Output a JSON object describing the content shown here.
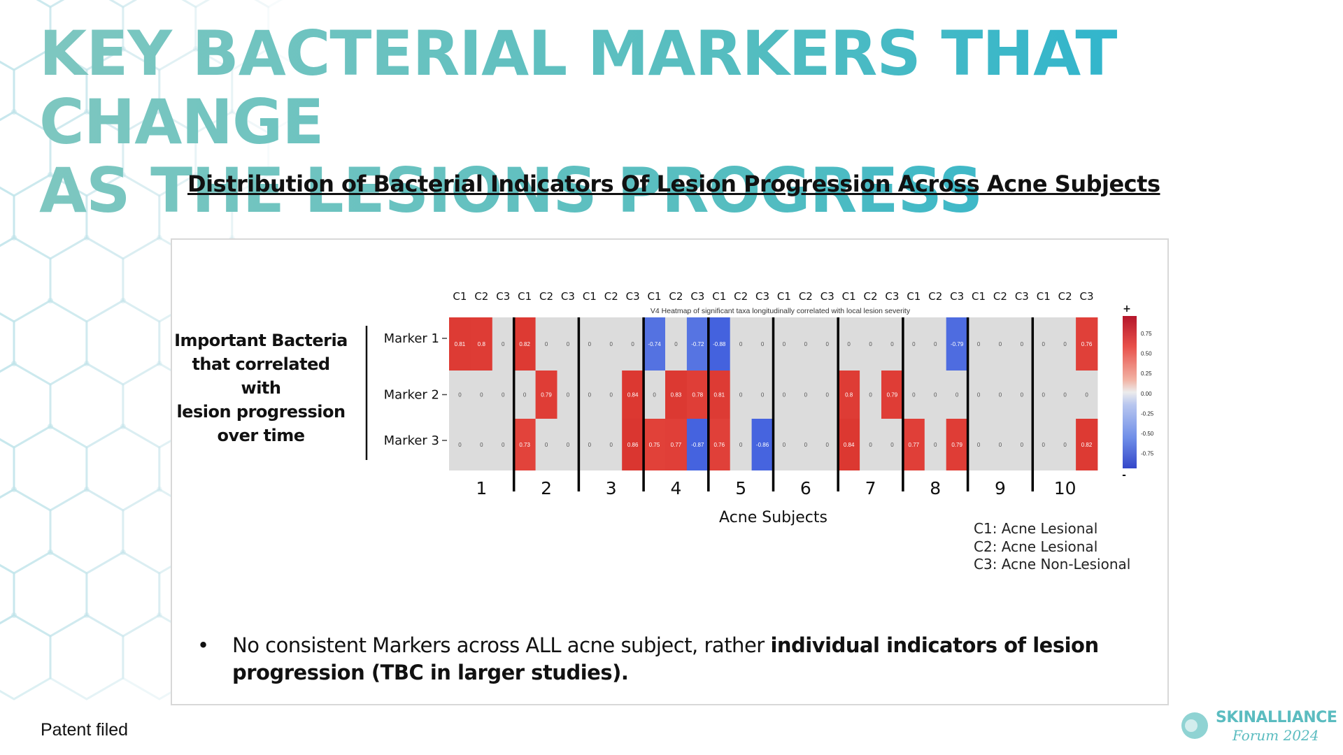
{
  "title_line1": "KEY BACTERIAL MARKERS THAT CHANGE",
  "title_line2": "AS THE LESIONS PROGRESS",
  "subtitle": "Distribution of Bacterial Indicators Of Lesion Progression Across Acne Subjects",
  "side_label": [
    "Important Bacteria",
    "that correlated with",
    "lesion progression",
    "over time"
  ],
  "legend_lines": [
    "C1: Acne Lesional",
    "C2: Acne Lesional",
    "C3: Acne Non-Lesional"
  ],
  "bullet": {
    "marker": "•",
    "normal": "No consistent Markers across ALL acne subject, rather ",
    "bold": "individual indicators of lesion progression (TBC in larger studies)."
  },
  "footer_note": "Patent filed",
  "logo": {
    "name": "SKINALLIANCE",
    "sub": "Forum 2024"
  },
  "colors": {
    "title_start": "#7ec7c0",
    "title_end": "#1eb1d3",
    "accent": "#5bbcc0"
  },
  "chart_data": {
    "type": "heatmap",
    "title": "V4 Heatmap of significant taxa longitudinally correlated with local lesion severity",
    "xlabel": "Acne Subjects",
    "subjects": [
      "1",
      "2",
      "3",
      "4",
      "5",
      "6",
      "7",
      "8",
      "9",
      "10"
    ],
    "sample_labels": [
      "C1",
      "C2",
      "C3"
    ],
    "markers": [
      "Marker 1",
      "Marker 2",
      "Marker 3"
    ],
    "values": [
      [
        0.81,
        0.8,
        0,
        0.82,
        0,
        0,
        0,
        0,
        0,
        -0.74,
        0,
        -0.72,
        -0.88,
        0,
        0,
        0,
        0,
        0,
        0,
        0,
        0,
        0,
        0,
        -0.79,
        0,
        0,
        0,
        0,
        0,
        0.76
      ],
      [
        0,
        0,
        0,
        0,
        0.79,
        0,
        0,
        0,
        0.84,
        0,
        0.83,
        0.78,
        0.81,
        0,
        0,
        0,
        0,
        0,
        0.8,
        0,
        0.79,
        0,
        0,
        0,
        0,
        0,
        0,
        0,
        0,
        0
      ],
      [
        0,
        0,
        0,
        0.73,
        0,
        0,
        0,
        0,
        0.86,
        0.75,
        0.77,
        -0.87,
        0.76,
        0,
        -0.86,
        0,
        0,
        0,
        0.84,
        0,
        0,
        0.77,
        0,
        0.79,
        0,
        0,
        0,
        0,
        0,
        0.82
      ]
    ],
    "colorbar": {
      "range": [
        -1,
        1
      ],
      "ticks": [
        "0.75",
        "0.50",
        "0.25",
        "0.00",
        "-0.25",
        "-0.50",
        "-0.75"
      ],
      "top": "+",
      "bottom": "-"
    }
  }
}
